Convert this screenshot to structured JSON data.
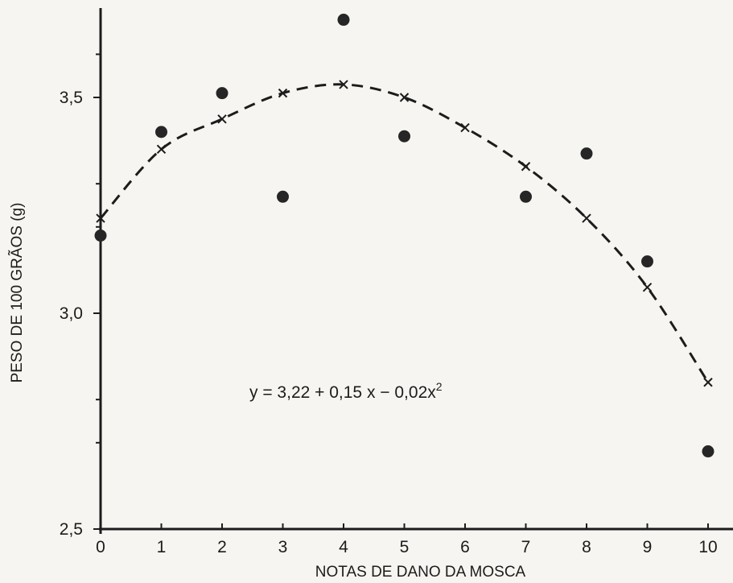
{
  "chart_data": {
    "type": "scatter",
    "title": "",
    "xlabel": "NOTAS DE DANO DA MOSCA",
    "ylabel": "PESO DE 100 GRÃOS (g)",
    "xlim": [
      0,
      10
    ],
    "ylim": [
      2.5,
      3.7
    ],
    "x_ticks": [
      0,
      1,
      2,
      3,
      4,
      5,
      6,
      7,
      8,
      9,
      10
    ],
    "x_tick_labels": [
      "0",
      "1",
      "2",
      "3",
      "4",
      "5",
      "6",
      "7",
      "8",
      "9",
      "10"
    ],
    "y_major_ticks": [
      2.5,
      3.0,
      3.5
    ],
    "y_tick_labels": [
      "2,5",
      "3,0",
      "3,5"
    ],
    "y_minor_ticks": [
      2.7,
      2.8,
      3.2,
      3.3,
      3.6
    ],
    "grid": false,
    "equation": {
      "prefix": "y  =  3,22 + 0,15 x − 0,02x",
      "exponent": "2"
    },
    "series": [
      {
        "marker": "circle",
        "x": [
          0,
          1,
          2,
          3,
          4,
          5,
          7,
          8,
          9,
          10
        ],
        "y": [
          3.18,
          3.42,
          3.51,
          3.27,
          3.68,
          3.41,
          3.27,
          3.37,
          3.12,
          2.68
        ]
      },
      {
        "marker": "x",
        "line_style": "dashed",
        "x": [
          0,
          1,
          2,
          3,
          4,
          5,
          6,
          7,
          8,
          9,
          10
        ],
        "y": [
          3.22,
          3.38,
          3.45,
          3.51,
          3.53,
          3.5,
          3.43,
          3.34,
          3.22,
          3.06,
          2.84
        ]
      }
    ]
  }
}
